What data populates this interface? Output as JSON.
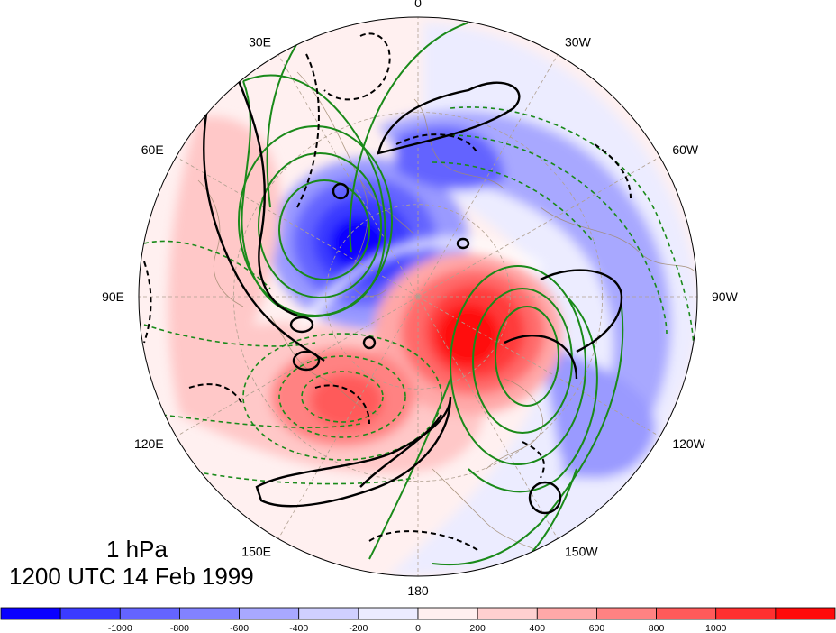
{
  "title": {
    "level": "1 hPa",
    "time": "1200 UTC 14 Feb 1999"
  },
  "map": {
    "projection": "north-polar-stereographic",
    "longitude_labels": [
      "0",
      "30W",
      "60W",
      "90W",
      "120W",
      "150W",
      "180",
      "150E",
      "120E",
      "90E",
      "60E",
      "30E"
    ],
    "fill_colors": {
      "neg_1000": "#0a00ff",
      "neg_800": "#3b3bff",
      "neg_600": "#6464ff",
      "neg_400": "#9a9aff",
      "neg_200": "#c8c8ff",
      "neg_0": "#ececff",
      "pos_0": "#fff0f0",
      "pos_200": "#ffc8c8",
      "pos_400": "#ff9a9a",
      "pos_600": "#ff6a6a",
      "pos_800": "#ff3a3a",
      "pos_1000": "#ff0a0a"
    },
    "contour_colors": {
      "black": "#000000",
      "green": "#1a8a1a",
      "coast": "#a08a70",
      "grid": "#b0a090"
    }
  },
  "colorbar": {
    "tick_labels": [
      "-1000",
      "-800",
      "-600",
      "-400",
      "-200",
      "0",
      "200",
      "400",
      "600",
      "800",
      "1000"
    ],
    "bin_colors": [
      "#0a00ff",
      "#3b3bff",
      "#6464ff",
      "#8282ff",
      "#a8a8ff",
      "#d0d0ff",
      "#ececff",
      "#fff0f0",
      "#ffd0d0",
      "#ffa8a8",
      "#ff8282",
      "#ff5a5a",
      "#ff3030",
      "#ff0a0a"
    ]
  }
}
